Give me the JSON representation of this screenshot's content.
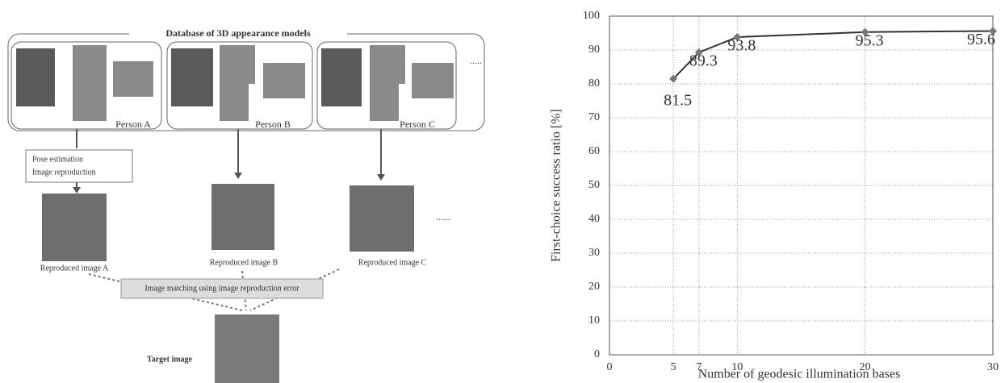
{
  "diagram": {
    "database": {
      "title": "Database of 3D appearance models",
      "persons": [
        "Person A",
        "Person B",
        "Person C"
      ],
      "more": "....."
    },
    "pose_box": [
      "Pose estimation",
      "Image reproduction"
    ],
    "reproduced": {
      "captions": [
        "Reproduced image A",
        "Reproduced image B",
        "Reproduced image C"
      ],
      "more": "......"
    },
    "matching": "Image matching using image reproduction error",
    "target": "Target image"
  },
  "chart_data": {
    "type": "line",
    "x": [
      5,
      7,
      10,
      20,
      30
    ],
    "values": [
      81.5,
      89.3,
      93.8,
      95.3,
      95.6
    ],
    "color": "#333333",
    "marker_color": "#777777",
    "xlim": [
      0,
      30
    ],
    "xticks": [
      0,
      5,
      7,
      10,
      20,
      30
    ],
    "ylim": [
      0,
      100
    ],
    "yticks": [
      0,
      10,
      20,
      30,
      40,
      50,
      60,
      70,
      80,
      90,
      100
    ],
    "grid": true,
    "x_label": "Number of geodesic illumination bases",
    "y_label": "First-choice success ratio [%]"
  }
}
